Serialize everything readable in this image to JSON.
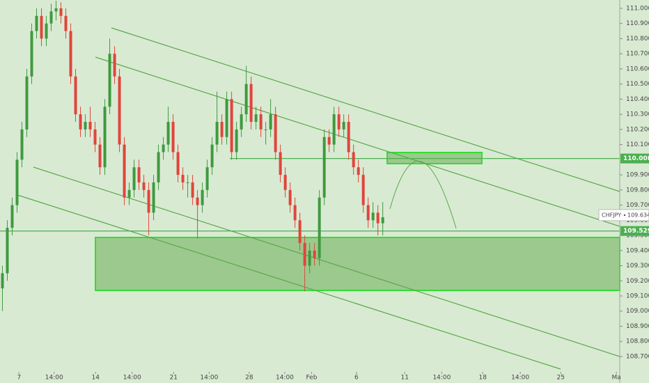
{
  "chart_data": {
    "type": "candlestick",
    "ylim": [
      108.525,
      111.055
    ],
    "xlim": [
      -0.5,
      126.6
    ],
    "yticks": [
      {
        "value": 111.0,
        "label": "111.000"
      },
      {
        "value": 110.9,
        "label": "110.900"
      },
      {
        "value": 110.8,
        "label": "110.800"
      },
      {
        "value": 110.7,
        "label": "110.700"
      },
      {
        "value": 110.6,
        "label": "110.600"
      },
      {
        "value": 110.5,
        "label": "110.500"
      },
      {
        "value": 110.4,
        "label": "110.400"
      },
      {
        "value": 110.3,
        "label": "110.300"
      },
      {
        "value": 110.2,
        "label": "110.200"
      },
      {
        "value": 110.1,
        "label": "110.100"
      },
      {
        "value": 109.9,
        "label": "109.900"
      },
      {
        "value": 109.8,
        "label": "109.800"
      },
      {
        "value": 109.7,
        "label": "109.700"
      },
      {
        "value": 109.6,
        "label": "109.600"
      },
      {
        "value": 109.5,
        "label": "109.500"
      },
      {
        "value": 109.4,
        "label": "109.400"
      },
      {
        "value": 109.3,
        "label": "109.300"
      },
      {
        "value": 109.2,
        "label": "109.200"
      },
      {
        "value": 109.1,
        "label": "109.100"
      },
      {
        "value": 109.0,
        "label": "109.000"
      },
      {
        "value": 108.9,
        "label": "108.900"
      },
      {
        "value": 108.8,
        "label": "108.800"
      },
      {
        "value": 108.7,
        "label": "108.700"
      }
    ],
    "xticks": [
      {
        "value": 3.4,
        "label": "7"
      },
      {
        "value": 10.6,
        "label": "14:00"
      },
      {
        "value": 19.1,
        "label": "14"
      },
      {
        "value": 26.6,
        "label": "14:00"
      },
      {
        "value": 35.1,
        "label": "21"
      },
      {
        "value": 42.4,
        "label": "14:00"
      },
      {
        "value": 50.6,
        "label": "28"
      },
      {
        "value": 57.9,
        "label": "14:00"
      },
      {
        "value": 63.4,
        "label": "Feb"
      },
      {
        "value": 72.6,
        "label": "6"
      },
      {
        "value": 82.5,
        "label": "11"
      },
      {
        "value": 90.1,
        "label": "14:00"
      },
      {
        "value": 98.5,
        "label": "18"
      },
      {
        "value": 106.2,
        "label": "14:00"
      },
      {
        "value": 114.5,
        "label": "25"
      },
      {
        "value": 125.9,
        "label": "Ma"
      }
    ],
    "up_color": "#3f9a3f",
    "down_color": "#e0453c",
    "ohlc": [
      [
        109.15,
        109.3,
        109.0,
        109.25
      ],
      [
        109.25,
        109.6,
        109.2,
        109.55
      ],
      [
        109.55,
        109.75,
        109.5,
        109.7
      ],
      [
        109.7,
        110.05,
        109.65,
        110.0
      ],
      [
        110.0,
        110.25,
        109.95,
        110.2
      ],
      [
        110.2,
        110.6,
        110.15,
        110.55
      ],
      [
        110.55,
        110.9,
        110.5,
        110.85
      ],
      [
        110.85,
        111.0,
        110.8,
        110.95
      ],
      [
        110.95,
        111.0,
        110.75,
        110.8
      ],
      [
        110.8,
        110.95,
        110.75,
        110.9
      ],
      [
        110.9,
        111.03,
        110.85,
        110.98
      ],
      [
        110.98,
        111.05,
        110.92,
        111.0
      ],
      [
        111.0,
        111.04,
        110.9,
        110.95
      ],
      [
        110.95,
        111.0,
        110.8,
        110.85
      ],
      [
        110.85,
        110.9,
        110.5,
        110.55
      ],
      [
        110.55,
        110.6,
        110.25,
        110.3
      ],
      [
        110.3,
        110.35,
        110.15,
        110.2
      ],
      [
        110.2,
        110.3,
        110.15,
        110.25
      ],
      [
        110.25,
        110.35,
        110.15,
        110.2
      ],
      [
        110.2,
        110.25,
        110.05,
        110.1
      ],
      [
        110.1,
        110.15,
        109.9,
        109.95
      ],
      [
        109.95,
        110.4,
        109.9,
        110.35
      ],
      [
        110.35,
        110.8,
        110.3,
        110.7
      ],
      [
        110.7,
        110.75,
        110.5,
        110.55
      ],
      [
        110.55,
        110.6,
        110.05,
        110.1
      ],
      [
        110.1,
        110.15,
        109.7,
        109.75
      ],
      [
        109.75,
        109.85,
        109.7,
        109.8
      ],
      [
        109.8,
        110.0,
        109.75,
        109.95
      ],
      [
        109.95,
        110.0,
        109.8,
        109.85
      ],
      [
        109.85,
        109.9,
        109.75,
        109.8
      ],
      [
        109.8,
        109.85,
        109.5,
        109.65
      ],
      [
        109.65,
        109.9,
        109.6,
        109.85
      ],
      [
        109.85,
        110.1,
        109.8,
        110.05
      ],
      [
        110.05,
        110.15,
        110.0,
        110.1
      ],
      [
        110.1,
        110.35,
        110.05,
        110.25
      ],
      [
        110.25,
        110.3,
        110.0,
        110.05
      ],
      [
        110.05,
        110.1,
        109.85,
        109.9
      ],
      [
        109.9,
        109.95,
        109.8,
        109.85
      ],
      [
        109.85,
        109.9,
        109.75,
        109.85
      ],
      [
        109.85,
        109.9,
        109.7,
        109.75
      ],
      [
        109.75,
        109.8,
        109.48,
        109.7
      ],
      [
        109.7,
        109.85,
        109.65,
        109.8
      ],
      [
        109.8,
        110.0,
        109.75,
        109.95
      ],
      [
        109.95,
        110.15,
        109.9,
        110.1
      ],
      [
        110.1,
        110.45,
        110.05,
        110.25
      ],
      [
        110.25,
        110.3,
        110.1,
        110.15
      ],
      [
        110.15,
        110.45,
        110.1,
        110.4
      ],
      [
        110.4,
        110.45,
        110.0,
        110.05
      ],
      [
        110.05,
        110.25,
        110.0,
        110.2
      ],
      [
        110.2,
        110.35,
        110.15,
        110.3
      ],
      [
        110.3,
        110.62,
        110.25,
        110.5
      ],
      [
        110.5,
        110.55,
        110.2,
        110.25
      ],
      [
        110.25,
        110.35,
        110.2,
        110.3
      ],
      [
        110.3,
        110.35,
        110.15,
        110.2
      ],
      [
        110.2,
        110.25,
        110.1,
        110.2
      ],
      [
        110.2,
        110.4,
        110.15,
        110.3
      ],
      [
        110.3,
        110.35,
        110.0,
        110.05
      ],
      [
        110.05,
        110.1,
        109.85,
        109.9
      ],
      [
        109.9,
        109.95,
        109.75,
        109.8
      ],
      [
        109.8,
        109.85,
        109.65,
        109.7
      ],
      [
        109.7,
        109.75,
        109.55,
        109.6
      ],
      [
        109.6,
        109.65,
        109.4,
        109.45
      ],
      [
        109.45,
        109.5,
        109.13,
        109.3
      ],
      [
        109.3,
        109.45,
        109.25,
        109.4
      ],
      [
        109.4,
        109.45,
        109.3,
        109.35
      ],
      [
        109.35,
        109.8,
        109.3,
        109.75
      ],
      [
        109.75,
        110.2,
        109.7,
        110.15
      ],
      [
        110.15,
        110.2,
        110.05,
        110.1
      ],
      [
        110.1,
        110.35,
        110.05,
        110.3
      ],
      [
        110.3,
        110.35,
        110.15,
        110.2
      ],
      [
        110.2,
        110.3,
        110.15,
        110.25
      ],
      [
        110.25,
        110.3,
        110.0,
        110.05
      ],
      [
        110.05,
        110.1,
        109.9,
        109.95
      ],
      [
        109.95,
        110.0,
        109.85,
        109.9
      ],
      [
        109.9,
        109.95,
        109.65,
        109.7
      ],
      [
        109.7,
        109.75,
        109.55,
        109.6
      ],
      [
        109.6,
        109.72,
        109.55,
        109.65
      ],
      [
        109.65,
        109.7,
        109.5,
        109.58
      ],
      [
        109.58,
        109.72,
        109.5,
        109.62
      ]
    ],
    "price_lines": [
      {
        "value": 110.008,
        "label": "110.008",
        "color": "#4caf50"
      },
      {
        "value": 109.529,
        "label": "109.529",
        "color": "#4caf50"
      }
    ],
    "last_price": {
      "symbol": "CHFJPY",
      "value": 109.634,
      "label": "109.634"
    }
  }
}
